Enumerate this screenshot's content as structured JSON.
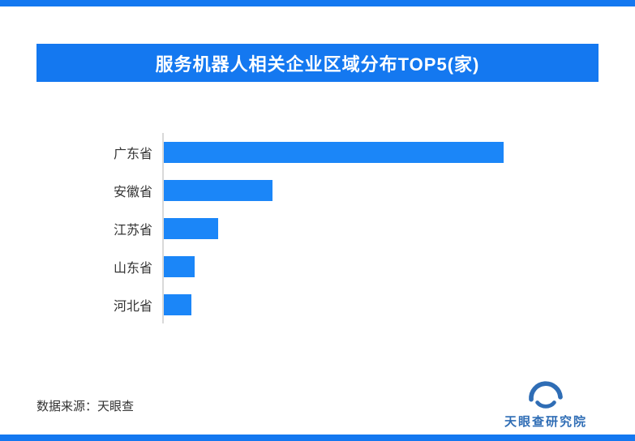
{
  "banner": {
    "title": "服务机器人相关企业区域分布TOP5(家)"
  },
  "footer": {
    "source": "数据来源：天眼查",
    "brand": "天眼查研究院",
    "brand_icon": "tianyancha-eye-icon"
  },
  "colors": {
    "banner_blue": "#1478f0",
    "bar_blue": "#1b86f8",
    "logo_blue": "#2f6db5",
    "axis_gray": "#d9d9d9"
  },
  "chart_data": {
    "type": "bar",
    "orientation": "horizontal",
    "title": "服务机器人相关企业区域分布TOP5(家)",
    "categories": [
      "广东省",
      "安徽省",
      "江苏省",
      "山东省",
      "河北省"
    ],
    "values": [
      100,
      32,
      16,
      9,
      8
    ],
    "xlabel": "",
    "ylabel": "",
    "xlim": [
      0,
      128
    ],
    "grid": false,
    "legend": false,
    "bar_color": "#1b86f8",
    "value_labels_shown": false
  }
}
